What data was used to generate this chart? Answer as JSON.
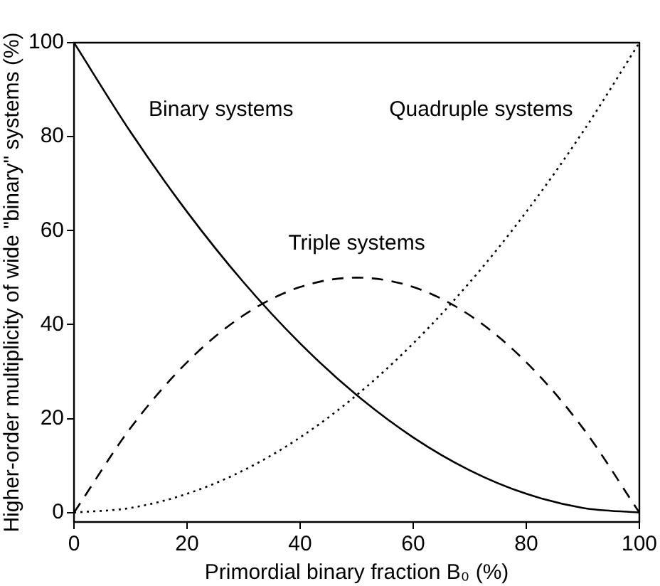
{
  "chart_data": {
    "type": "line",
    "xlabel": "Primordial binary fraction B₀ (%)",
    "ylabel": "Higher-order multiplicity of wide \"binary\" systems (%)",
    "x": [
      0,
      10,
      20,
      30,
      40,
      50,
      60,
      70,
      80,
      90,
      100
    ],
    "series": [
      {
        "name": "Binary systems",
        "color": "#000000",
        "line_style": "solid",
        "values": [
          100,
          81,
          64,
          49,
          36,
          25,
          16,
          9,
          4,
          1,
          0
        ]
      },
      {
        "name": "Triple systems",
        "color": "#000000",
        "line_style": "dashed",
        "values": [
          0,
          18,
          32,
          42,
          48,
          50,
          48,
          42,
          32,
          18,
          0
        ]
      },
      {
        "name": "Quadruple systems",
        "color": "#000000",
        "line_style": "dotted",
        "values": [
          0,
          1,
          4,
          9,
          16,
          25,
          36,
          49,
          64,
          81,
          100
        ]
      }
    ],
    "xlim": [
      0,
      100
    ],
    "xticks": [
      0,
      20,
      40,
      60,
      80,
      100
    ],
    "ylim": [
      -2,
      100
    ],
    "yticks": [
      0,
      20,
      40,
      60,
      80,
      100
    ],
    "grid": false,
    "legend": false,
    "marker": "none"
  }
}
